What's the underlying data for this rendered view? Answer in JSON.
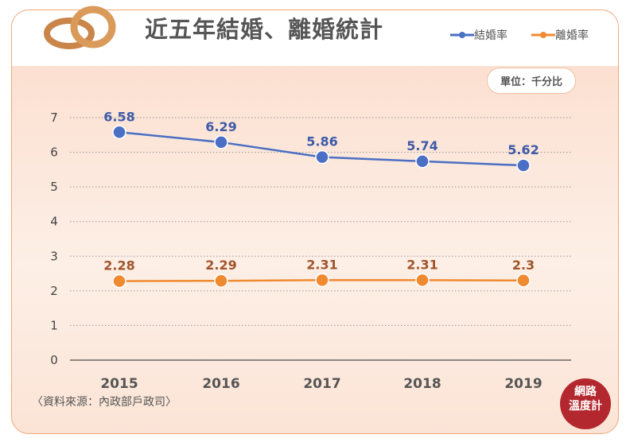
{
  "header": {
    "title": "近五年結婚、離婚統計"
  },
  "unit_label": "單位：千分比",
  "source": "〈資料來源：內政部戶政司〉",
  "badge": {
    "line1": "網路",
    "line2": "溫度計"
  },
  "colors": {
    "marriage": "#4a6fc4",
    "divorce": "#f08a30",
    "marriage_label": "#3e5aa8",
    "divorce_label": "#a0542a"
  },
  "chart_data": {
    "type": "line",
    "title": "近五年結婚、離婚統計",
    "categories": [
      "2015",
      "2016",
      "2017",
      "2018",
      "2019"
    ],
    "ylim": [
      0,
      7
    ],
    "yticks": [
      "0",
      "1",
      "2",
      "3",
      "4",
      "5",
      "6",
      "7"
    ],
    "legend_position": "top-right",
    "grid": true,
    "series": [
      {
        "name": "結婚率",
        "values": [
          6.58,
          6.29,
          5.86,
          5.74,
          5.62
        ],
        "labels": [
          "6.58",
          "6.29",
          "5.86",
          "5.74",
          "5.62"
        ]
      },
      {
        "name": "離婚率",
        "values": [
          2.28,
          2.29,
          2.31,
          2.31,
          2.3
        ],
        "labels": [
          "2.28",
          "2.29",
          "2.31",
          "2.31",
          "2.3"
        ]
      }
    ]
  }
}
